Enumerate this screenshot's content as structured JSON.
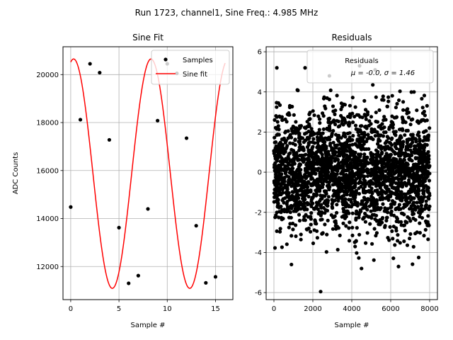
{
  "figure": {
    "suptitle": "Run 1723, channel1, Sine Freq.: 4.985 MHz"
  },
  "chart_data": [
    {
      "type": "scatter",
      "title": "Sine Fit",
      "xlabel": "Sample #",
      "ylabel": "ADC Counts",
      "xlim": [
        -0.8,
        16.8
      ],
      "ylim": [
        10620,
        21160
      ],
      "xticks": [
        0,
        5,
        10,
        15
      ],
      "yticks": [
        12000,
        14000,
        16000,
        18000,
        20000
      ],
      "grid": true,
      "legend_position": "upper right",
      "series": [
        {
          "name": "Samples",
          "kind": "scatter",
          "color": "#000000",
          "x": [
            0,
            1,
            2,
            3,
            4,
            5,
            6,
            7,
            8,
            9,
            10,
            11,
            12,
            13,
            14,
            15
          ],
          "y": [
            14480,
            18120,
            20450,
            20080,
            17280,
            13620,
            11300,
            11620,
            14400,
            18080,
            20450,
            20050,
            17350,
            13700,
            11320,
            11570
          ]
        },
        {
          "name": "Sine fit",
          "kind": "line",
          "color": "#ff0000",
          "model": {
            "offset": 15870,
            "amplitude": 4780,
            "period": 8.02,
            "phase_samples": 0.3,
            "x_range": [
              0,
              16
            ]
          }
        }
      ]
    },
    {
      "type": "scatter",
      "title": "Residuals",
      "xlabel": "Sample #",
      "ylabel": "",
      "xlim": [
        -400,
        8400
      ],
      "ylim": [
        -6.35,
        6.25
      ],
      "xticks": [
        0,
        2000,
        4000,
        6000,
        8000
      ],
      "yticks": [
        -6,
        -4,
        -2,
        0,
        2,
        4,
        6
      ],
      "grid": true,
      "legend_position": "upper right",
      "legend": {
        "title": "Residuals",
        "stats": "μ = -0.0, σ = 1.46"
      },
      "series": [
        {
          "name": "Residuals",
          "kind": "scatter",
          "color": "#000000",
          "n_points": 8000,
          "mean": -0.0,
          "std": 1.46,
          "x_range": [
            0,
            8000
          ],
          "notable_points": [
            {
              "x": 2400,
              "y": -5.95
            },
            {
              "x": 150,
              "y": 5.2
            },
            {
              "x": 1600,
              "y": 5.2
            },
            {
              "x": 4400,
              "y": 5.3
            },
            {
              "x": 5200,
              "y": 5.1
            },
            {
              "x": 2850,
              "y": 4.8
            },
            {
              "x": 4500,
              "y": -4.8
            },
            {
              "x": 6400,
              "y": -4.7
            },
            {
              "x": 900,
              "y": -4.6
            }
          ]
        }
      ]
    }
  ]
}
